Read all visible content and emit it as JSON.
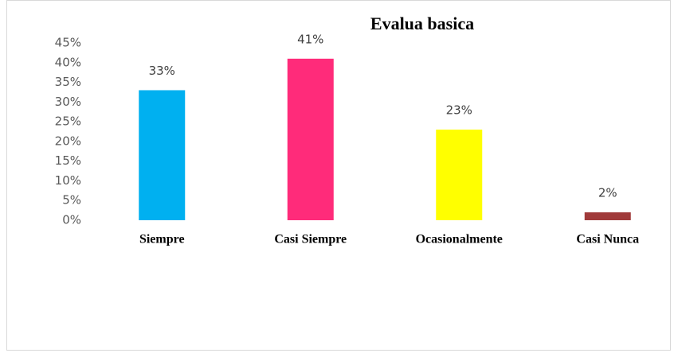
{
  "chart_data": {
    "type": "bar",
    "title": "Evalua basica",
    "categories": [
      "Siempre",
      "Casi Siempre",
      "Ocasionalmente",
      "Casi Nunca"
    ],
    "values": [
      33,
      41,
      23,
      2
    ],
    "value_labels": [
      "33%",
      "41%",
      "23%",
      "2%"
    ],
    "colors": [
      "#00b0f0",
      "#ff2b7a",
      "#ffff00",
      "#a03a3a"
    ],
    "ylim": [
      0,
      45
    ],
    "yticks": [
      {
        "value": 0,
        "label": "0%"
      },
      {
        "value": 5,
        "label": "5%"
      },
      {
        "value": 10,
        "label": "10%"
      },
      {
        "value": 15,
        "label": "15%"
      },
      {
        "value": 20,
        "label": "20%"
      },
      {
        "value": 25,
        "label": "25%"
      },
      {
        "value": 30,
        "label": "30%"
      },
      {
        "value": 35,
        "label": "35%"
      },
      {
        "value": 40,
        "label": "40%"
      },
      {
        "value": 45,
        "label": "45%"
      }
    ],
    "grid": false
  }
}
